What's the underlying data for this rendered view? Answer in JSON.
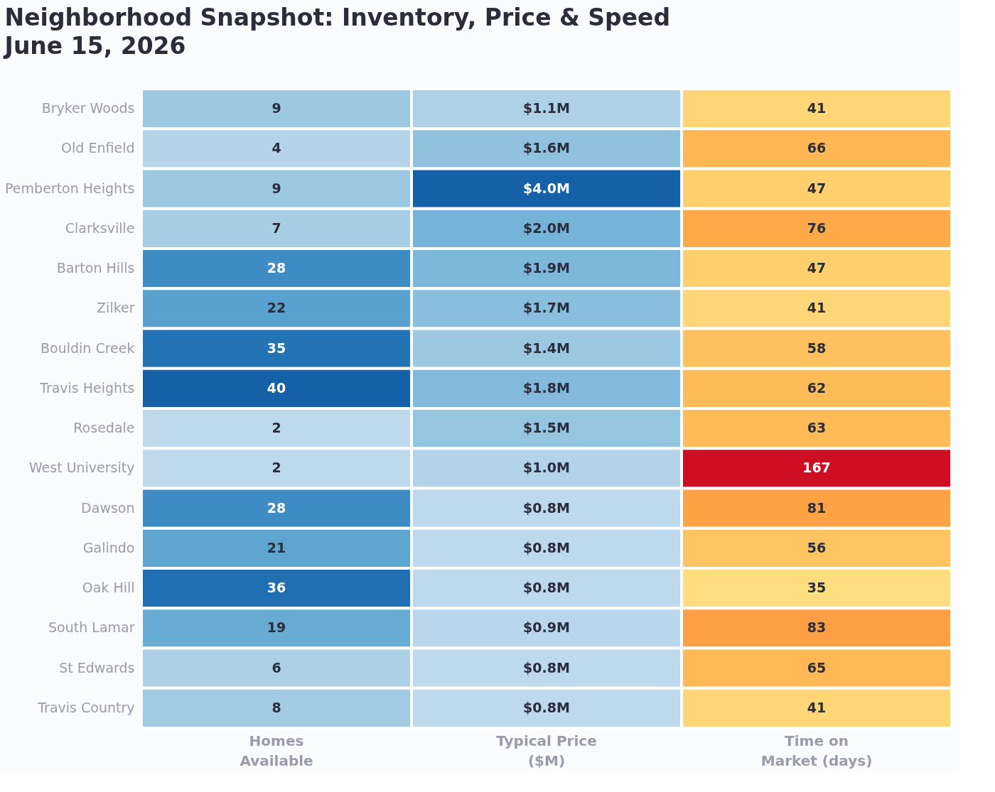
{
  "chart_data": {
    "type": "heatmap",
    "title": "Neighborhood Snapshot: Inventory, Price & Speed\nJune 15, 2026",
    "categories": [
      "Homes\nAvailable",
      "Typical Price\n($M)",
      "Time on\nMarket (days)"
    ],
    "y_categories": [
      "Bryker Woods",
      "Old Enfield",
      "Pemberton Heights",
      "Clarksville",
      "Barton Hills",
      "Zilker",
      "Bouldin Creek",
      "Travis Heights",
      "Rosedale",
      "West University",
      "Dawson",
      "Galindo",
      "Oak Hill",
      "South Lamar",
      "St Edwards",
      "Travis Country"
    ],
    "cells": [
      [
        9,
        1.1,
        41
      ],
      [
        4,
        1.6,
        66
      ],
      [
        9,
        4.0,
        47
      ],
      [
        7,
        2.0,
        76
      ],
      [
        28,
        1.9,
        47
      ],
      [
        22,
        1.7,
        41
      ],
      [
        35,
        1.4,
        58
      ],
      [
        40,
        1.8,
        62
      ],
      [
        2,
        1.5,
        63
      ],
      [
        2,
        1.0,
        167
      ],
      [
        28,
        0.8,
        81
      ],
      [
        21,
        0.8,
        56
      ],
      [
        36,
        0.8,
        35
      ],
      [
        19,
        0.9,
        83
      ],
      [
        6,
        0.8,
        65
      ],
      [
        8,
        0.8,
        41
      ]
    ],
    "cell_labels": [
      [
        "9",
        "$1.1M",
        "41"
      ],
      [
        "4",
        "$1.6M",
        "66"
      ],
      [
        "9",
        "$4.0M",
        "47"
      ],
      [
        "7",
        "$2.0M",
        "76"
      ],
      [
        "28",
        "$1.9M",
        "47"
      ],
      [
        "22",
        "$1.7M",
        "41"
      ],
      [
        "35",
        "$1.4M",
        "58"
      ],
      [
        "40",
        "$1.8M",
        "62"
      ],
      [
        "2",
        "$1.5M",
        "63"
      ],
      [
        "2",
        "$1.0M",
        "167"
      ],
      [
        "28",
        "$0.8M",
        "81"
      ],
      [
        "21",
        "$0.8M",
        "56"
      ],
      [
        "36",
        "$0.8M",
        "35"
      ],
      [
        "19",
        "$0.9M",
        "83"
      ],
      [
        "6",
        "$0.8M",
        "65"
      ],
      [
        "8",
        "$0.8M",
        "41"
      ]
    ]
  }
}
